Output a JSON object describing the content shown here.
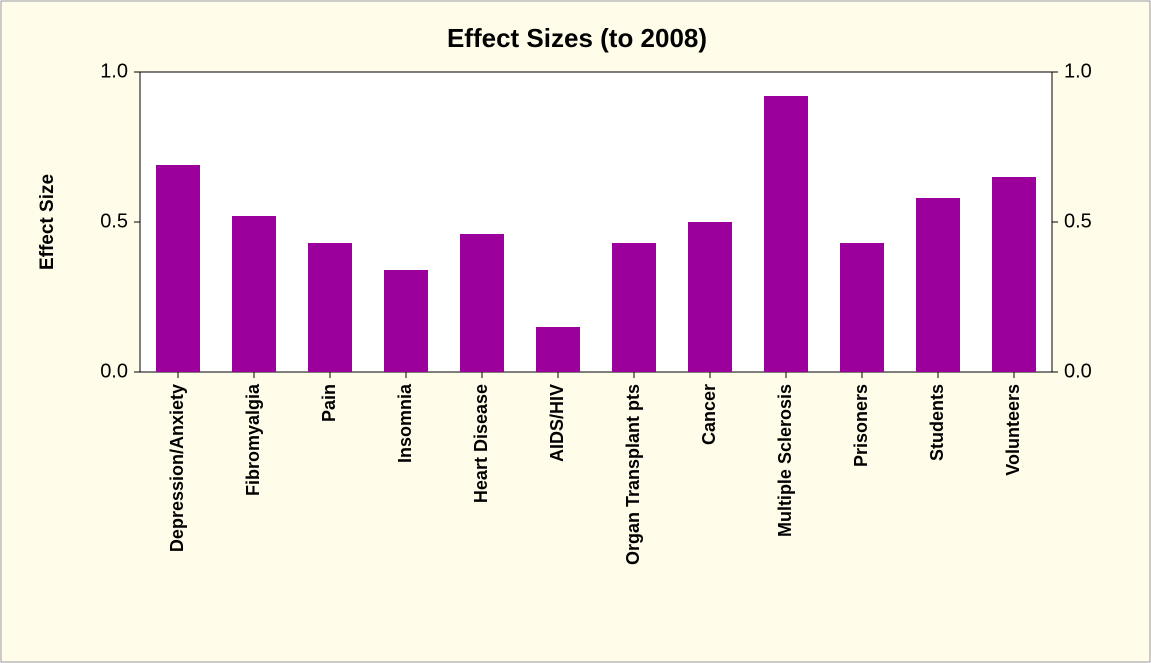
{
  "chart_data": {
    "type": "bar",
    "title": "Effect Sizes (to 2008)",
    "y_label": "Effect Size",
    "categories": [
      "Depression/Anxiety",
      "Fibromyalgia",
      "Pain",
      "Insomnia",
      "Heart Disease",
      "AIDS/HIV",
      "Organ Transplant pts",
      "Cancer",
      "Multiple Sclerosis",
      "Prisoners",
      "Students",
      "Volunteers"
    ],
    "values": [
      0.69,
      0.52,
      0.43,
      0.34,
      0.46,
      0.15,
      0.43,
      0.5,
      0.92,
      0.43,
      0.58,
      0.65
    ],
    "color": "#9c009c",
    "ylim": [
      0,
      1
    ],
    "yticks": [
      {
        "value": 0,
        "label": "0.0"
      },
      {
        "value": 0.5,
        "label": "0.5"
      },
      {
        "value": 1,
        "label": "1.0"
      }
    ],
    "y2lim": [
      0,
      1
    ],
    "y2ticks": [
      {
        "value": 0,
        "label": "0.0"
      },
      {
        "value": 0.5,
        "label": "0.5"
      },
      {
        "value": 1,
        "label": "1.0"
      }
    ],
    "grid": false
  }
}
